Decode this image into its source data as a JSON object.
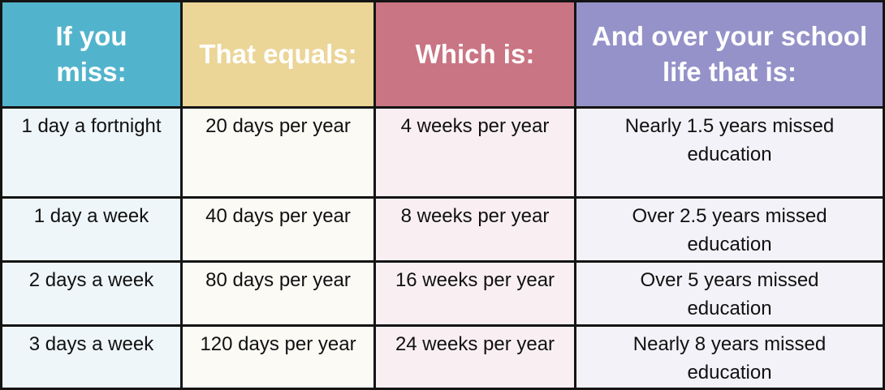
{
  "table": {
    "header": [
      "If you miss:",
      "That equals:",
      "Which is:",
      "And over your school life that is:"
    ],
    "rows": [
      [
        "1 day a fortnight",
        "20 days per year",
        "4 weeks per year",
        "Nearly 1.5 years missed education"
      ],
      [
        "1 day a week",
        "40 days per year",
        "8 weeks per year",
        "Over 2.5 years missed education"
      ],
      [
        "2 days a week",
        "80 days per year",
        "16 weeks per year",
        "Over 5 years missed education"
      ],
      [
        "3 days a week",
        "120 days per year",
        "24 weeks per year",
        "Nearly 8 years missed education"
      ]
    ]
  }
}
